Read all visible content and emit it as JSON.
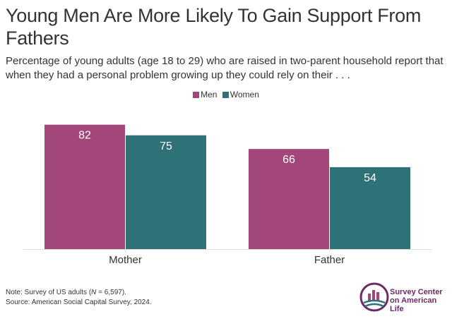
{
  "title": "Young Men Are More Likely To Gain Support From Fathers",
  "subtitle": "Percentage of young adults (age 18 to 29) who are raised in two-parent household report that when they had a personal problem growing up they could rely on their . . .",
  "note": {
    "line1_prefix": "Note: Survey of US adults (",
    "line1_italic": "N",
    "line1_suffix": " = 6,597).",
    "line2": "Source: American Social Capital Survey, 2024."
  },
  "logo": {
    "line1": "Survey Center",
    "line2": "on American Life"
  },
  "colors": {
    "men": "#a3477a",
    "women": "#2e7177"
  },
  "chart_data": {
    "type": "bar",
    "title": "Young Men Are More Likely To Gain Support From Fathers",
    "categories": [
      "Mother",
      "Father"
    ],
    "series": [
      {
        "name": "Men",
        "values": [
          82,
          66
        ]
      },
      {
        "name": "Women",
        "values": [
          75,
          54
        ]
      }
    ],
    "ylim": [
      0,
      100
    ],
    "grid": false,
    "legend": "top-center",
    "data_labels": true
  }
}
